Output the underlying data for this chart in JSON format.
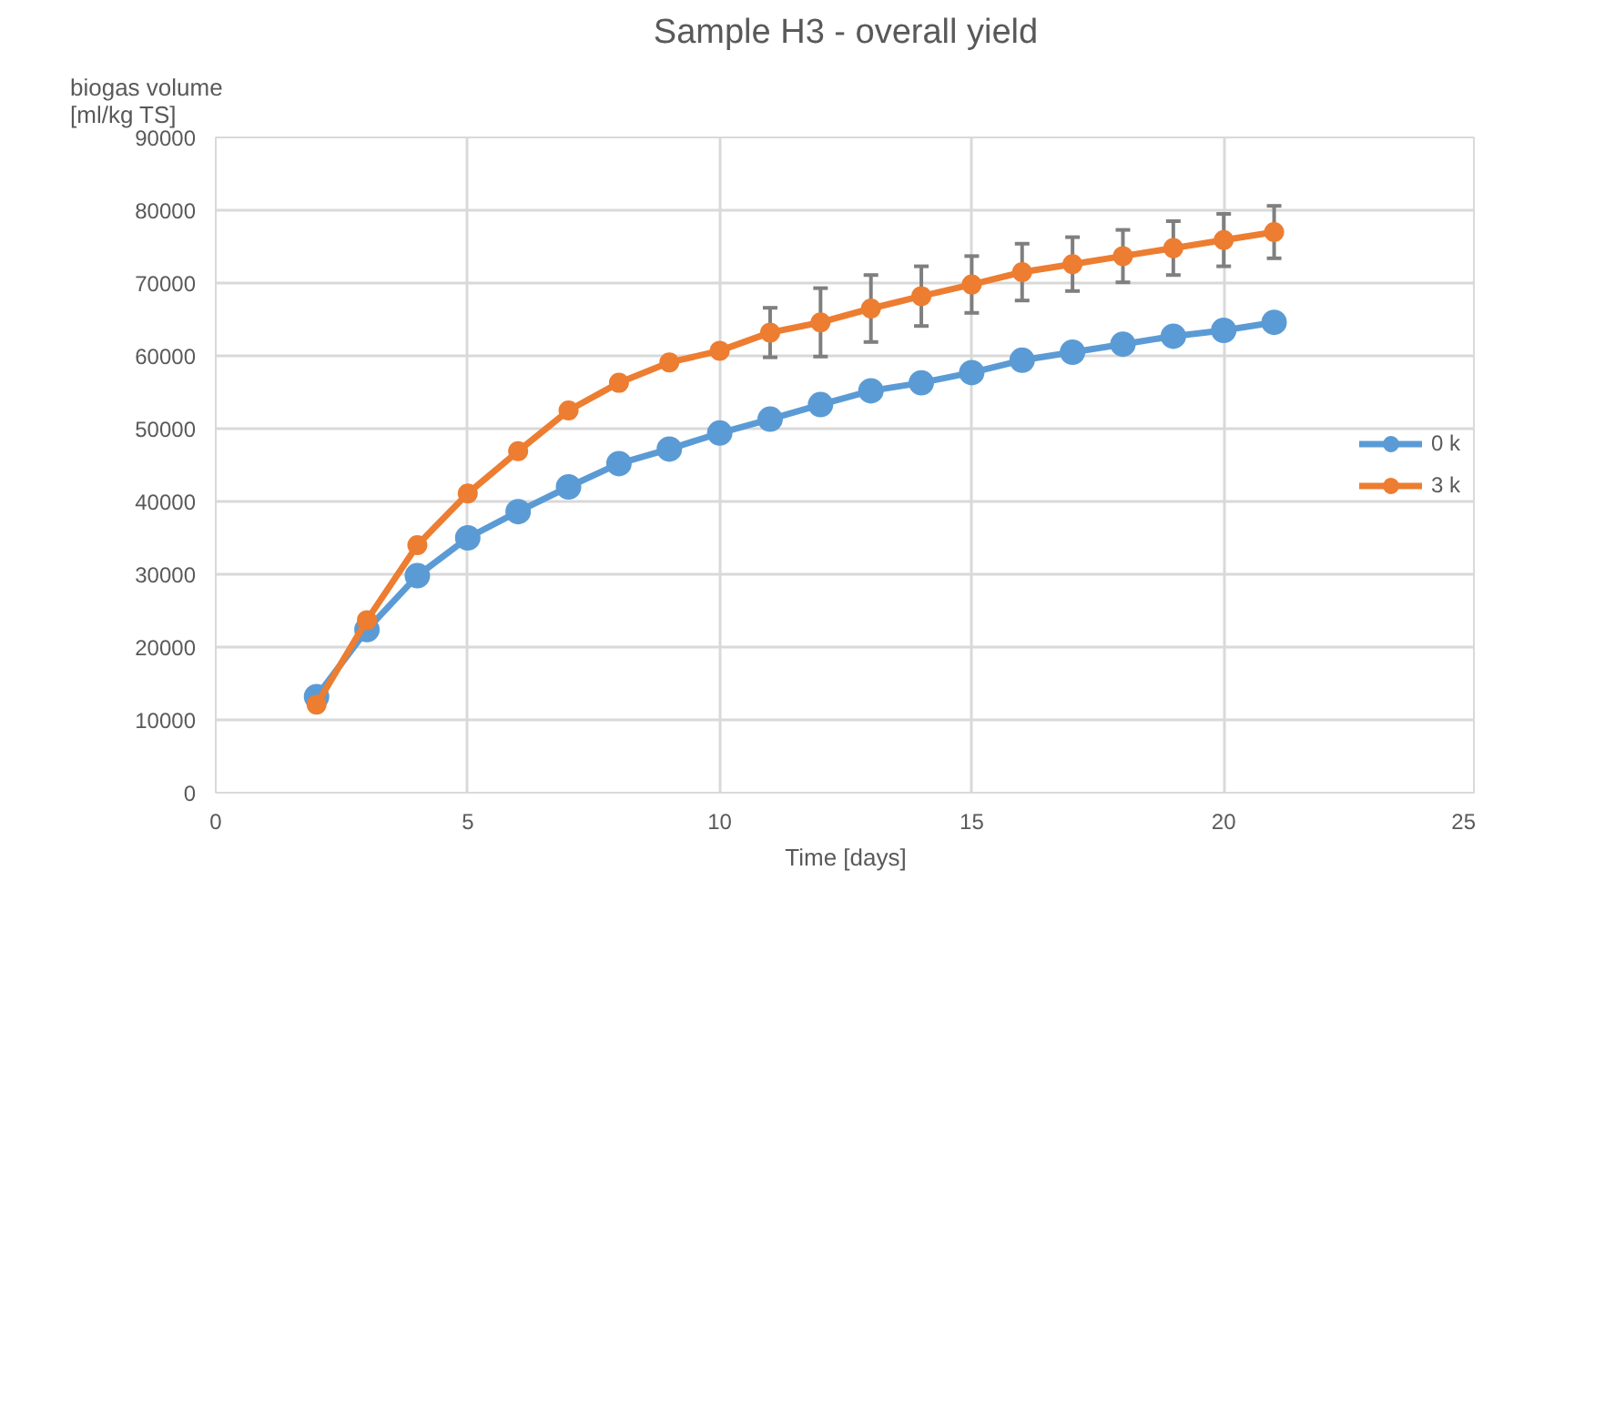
{
  "chart_data": {
    "type": "line",
    "title": "Sample H3 - overall yield",
    "xlabel": "Time [days]",
    "ylabel": "biogas volume\n[ml/kg  TS]",
    "x": [
      2,
      3,
      4,
      5,
      6,
      7,
      8,
      9,
      10,
      11,
      12,
      13,
      14,
      15,
      16,
      17,
      18,
      19,
      20,
      21
    ],
    "series": [
      {
        "name": "0 k",
        "color": "#5b9bd5",
        "values": [
          13200,
          22400,
          29800,
          35000,
          38600,
          42000,
          45200,
          47200,
          49400,
          51300,
          53300,
          55200,
          56300,
          57700,
          59400,
          60500,
          61600,
          62700,
          63500,
          64600
        ]
      },
      {
        "name": "3 k",
        "color": "#ed7d31",
        "values": [
          12100,
          23700,
          34000,
          41100,
          46900,
          52500,
          56300,
          59100,
          60700,
          63200,
          64600,
          66500,
          68200,
          69800,
          71500,
          72600,
          73700,
          74800,
          75900,
          77000
        ],
        "errors": [
          null,
          null,
          null,
          null,
          null,
          null,
          null,
          null,
          null,
          3400,
          4700,
          4600,
          4100,
          3900,
          3900,
          3700,
          3600,
          3700,
          3600,
          3600
        ]
      }
    ],
    "xlim": [
      0,
      25
    ],
    "xticks": [
      0,
      5,
      10,
      15,
      20,
      25
    ],
    "ylim": [
      0,
      90000
    ],
    "yticks": [
      0,
      10000,
      20000,
      30000,
      40000,
      50000,
      60000,
      70000,
      80000,
      90000
    ],
    "grid": true,
    "legend": "right",
    "marker": "circle",
    "line_style": "solid"
  }
}
